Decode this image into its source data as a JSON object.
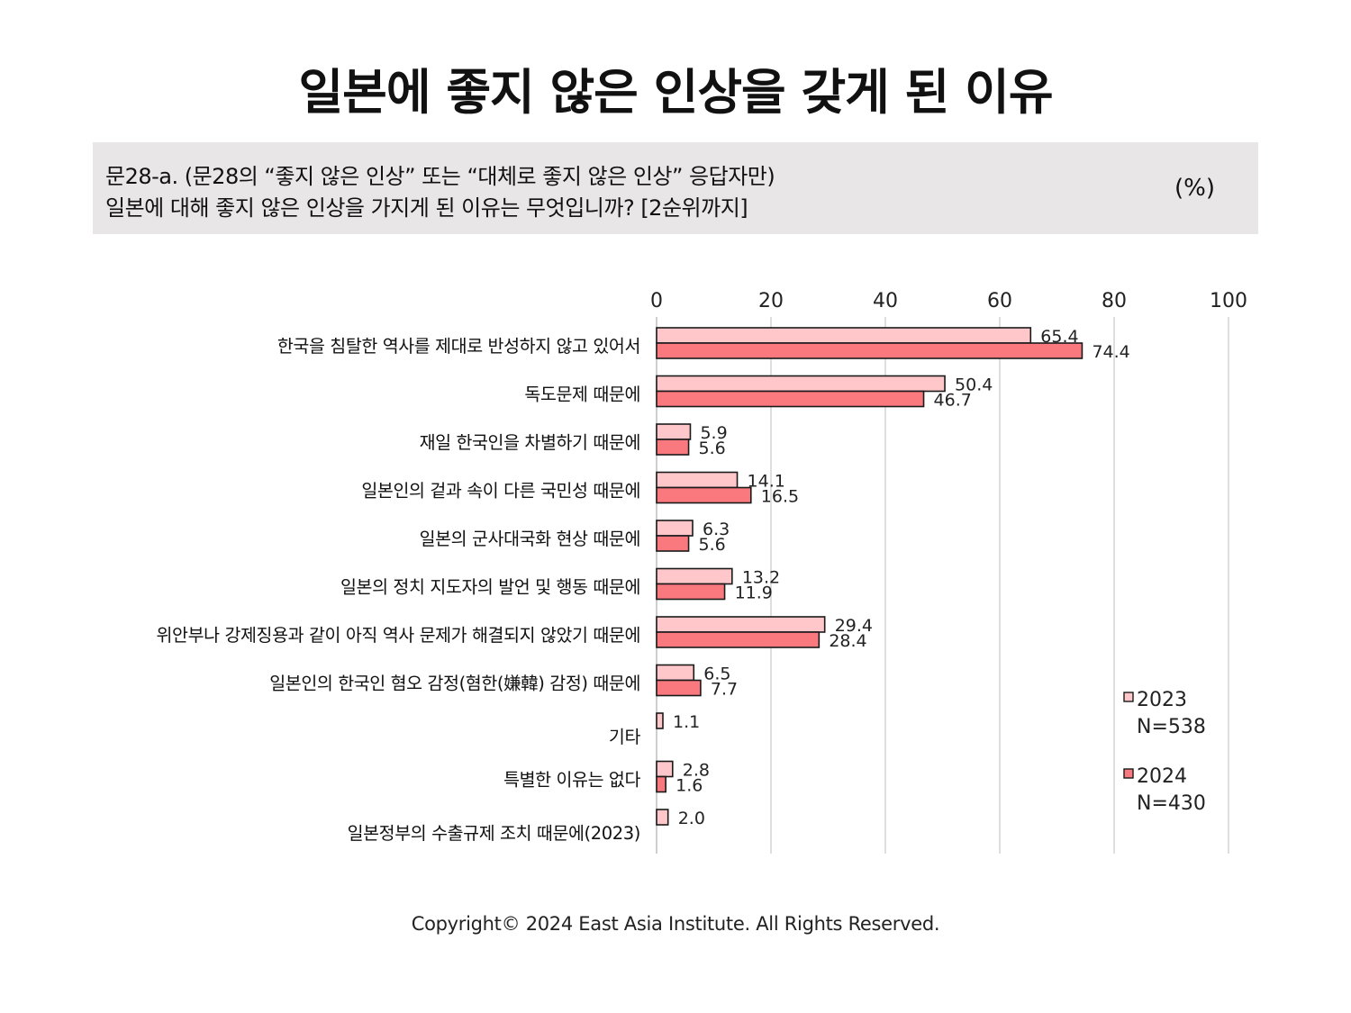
{
  "title": "일본에 좋지 않은 인상을 갖게 된 이유",
  "question": {
    "line1": "문28-a. (문28의 “좋지 않은 인상” 또는 “대체로 좋지 않은 인상” 응답자만)",
    "line2": "일본에 대해 좋지 않은 인상을 가지게 된 이유는 무엇입니까? [2순위까지]",
    "unit": "(%)"
  },
  "colors": {
    "series_2023": "#ffc7ca",
    "series_2024": "#f9797f",
    "bar_stroke": "#1a1a1a",
    "grid": "#d4d4d4"
  },
  "chart_data": {
    "type": "bar",
    "orientation": "horizontal",
    "categories": [
      "한국을 침탈한 역사를 제대로 반성하지 않고 있어서",
      "독도문제 때문에",
      "재일 한국인을 차별하기 때문에",
      "일본인의 겉과 속이 다른 국민성 때문에",
      "일본의 군사대국화 현상 때문에",
      "일본의 정치 지도자의 발언 및 행동 때문에",
      "위안부나 강제징용과 같이 아직 역사 문제가 해결되지 않았기 때문에",
      "일본인의 한국인 혐오 감정(혐한(嫌韓) 감정) 때문에",
      "기타",
      "특별한 이유는 없다",
      "일본정부의 수출규제 조치 때문에(2023)"
    ],
    "series": [
      {
        "name": "2023",
        "n_label": "N=538",
        "values": [
          65.4,
          50.4,
          5.9,
          14.1,
          6.3,
          13.2,
          29.4,
          6.5,
          1.1,
          2.8,
          2.0
        ],
        "labels": [
          "65.4",
          "50.4",
          "5.9",
          "14.1",
          "6.3",
          "13.2",
          "29.4",
          "6.5",
          "1.1",
          "2.8",
          "2.0"
        ]
      },
      {
        "name": "2024",
        "n_label": "N=430",
        "values": [
          74.4,
          46.7,
          5.6,
          16.5,
          5.6,
          11.9,
          28.4,
          7.7,
          null,
          1.6,
          null
        ],
        "labels": [
          "74.4",
          "46.7",
          "5.6",
          "16.5",
          "5.6",
          "11.9",
          "28.4",
          "7.7",
          "",
          "1.6",
          ""
        ]
      }
    ],
    "xlim": [
      0,
      100
    ],
    "ticks": [
      0,
      20,
      40,
      60,
      80,
      100
    ],
    "tick_labels": [
      "0",
      "20",
      "40",
      "60",
      "80",
      "100"
    ],
    "axis_position": "top",
    "grid": true,
    "legend_position": "bottom-right"
  },
  "footer": {
    "copyright": "Copyright© 2024 East Asia Institute. All Rights Reserved."
  }
}
